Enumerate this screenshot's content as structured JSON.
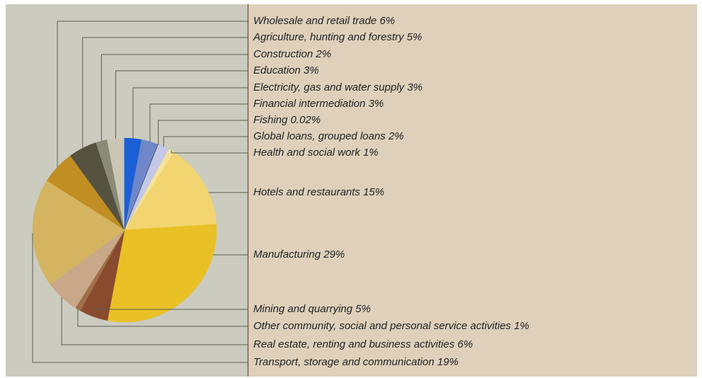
{
  "chart_data": {
    "type": "pie",
    "categories": [
      "Wholesale and retail trade",
      "Agriculture, hunting and forestry",
      "Construction",
      "Education",
      "Electricity, gas and water supply",
      "Financial intermediation",
      "Fishing",
      "Global loans, grouped loans",
      "Health and social work",
      "Hotels and restaurants",
      "Manufacturing",
      "Mining and quarrying",
      "Other community, social and personal service activities",
      "Real estate, renting and business activities",
      "Transport, storage and communication"
    ],
    "values": [
      6,
      5,
      2,
      3,
      3,
      3,
      0.02,
      2,
      1,
      15,
      29,
      5,
      1,
      6,
      19
    ],
    "value_labels": [
      "6%",
      "5%",
      "2%",
      "3%",
      "3%",
      "3%",
      "0.02%",
      "2%",
      "1%",
      "15%",
      "29%",
      "5%",
      "1%",
      "6%",
      "19%"
    ],
    "colors": [
      "#c08e22",
      "#55523f",
      "#8b8a78",
      "#c9c6b6",
      "#1a5fd6",
      "#6f87c9",
      "#333333",
      "#c4c8e6",
      "#f5e29a",
      "#f2d570",
      "#e9c026",
      "#8a4a2e",
      "#a0704a",
      "#c8a888",
      "#d4b460"
    ]
  }
}
